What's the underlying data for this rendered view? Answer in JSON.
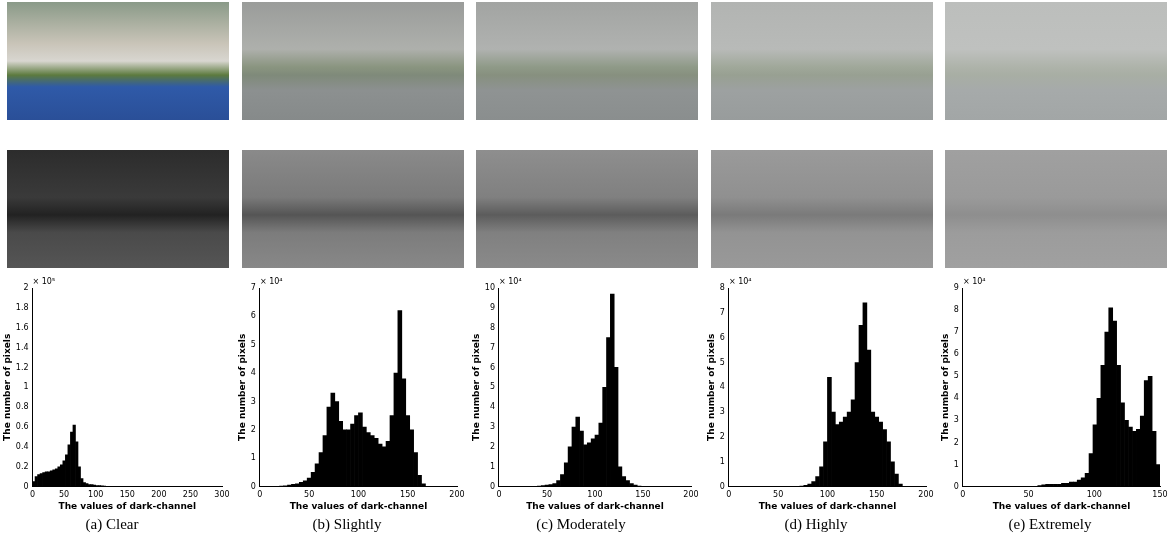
{
  "chart_data": [
    {
      "type": "histogram",
      "title": "(a) Clear",
      "x_label": "The values of dark-channel",
      "y_label": "The number of pixels",
      "annotations": [
        "× 10⁵"
      ],
      "color": "#000000",
      "grid": false,
      "bins": [
        0,
        4,
        8,
        12,
        16,
        20,
        24,
        28,
        32,
        36,
        40,
        44,
        48,
        52,
        56,
        60,
        64,
        68,
        72,
        76,
        80,
        84,
        88,
        92,
        96,
        100,
        104,
        108,
        112,
        116,
        120
      ],
      "values": [
        0.05,
        0.1,
        0.12,
        0.13,
        0.14,
        0.15,
        0.15,
        0.16,
        0.17,
        0.18,
        0.2,
        0.22,
        0.26,
        0.32,
        0.42,
        0.55,
        0.62,
        0.45,
        0.2,
        0.08,
        0.04,
        0.03,
        0.02,
        0.02,
        0.015,
        0.01,
        0.01,
        0.008,
        0.005,
        0.003
      ],
      "xlim": [
        0,
        300
      ],
      "xticks": [
        0,
        50,
        100,
        150,
        200,
        250,
        300
      ],
      "ylim": [
        0,
        2
      ],
      "yticks": [
        0,
        0.2,
        0.4,
        0.6,
        0.8,
        1,
        1.2,
        1.4,
        1.6,
        1.8,
        2
      ]
    },
    {
      "type": "histogram",
      "title": "(b) Slightly",
      "x_label": "The values of dark-channel",
      "y_label": "The number of pixels",
      "annotations": [
        "× 10⁴"
      ],
      "color": "#000000",
      "grid": false,
      "bins": [
        20,
        24,
        28,
        32,
        36,
        40,
        44,
        48,
        52,
        56,
        60,
        64,
        68,
        72,
        76,
        80,
        84,
        88,
        92,
        96,
        100,
        104,
        108,
        112,
        116,
        120,
        124,
        128,
        132,
        136,
        140,
        144,
        148,
        152,
        156,
        160,
        164,
        168
      ],
      "values": [
        0.02,
        0.03,
        0.05,
        0.08,
        0.1,
        0.15,
        0.2,
        0.3,
        0.5,
        0.8,
        1.2,
        1.8,
        2.8,
        3.3,
        3.0,
        2.3,
        2.0,
        2.0,
        2.2,
        2.5,
        2.6,
        2.1,
        1.9,
        1.8,
        1.7,
        1.5,
        1.4,
        1.6,
        2.5,
        4.0,
        6.2,
        3.8,
        2.5,
        2.0,
        1.2,
        0.4,
        0.1
      ],
      "xlim": [
        0,
        200
      ],
      "xticks": [
        0,
        50,
        100,
        150,
        200
      ],
      "ylim": [
        0,
        7
      ],
      "yticks": [
        0,
        1,
        2,
        3,
        4,
        5,
        6,
        7
      ]
    },
    {
      "type": "histogram",
      "title": "(c) Moderately",
      "x_label": "The values of dark-channel",
      "y_label": "The number of pixels",
      "annotations": [
        "× 10⁴"
      ],
      "color": "#000000",
      "grid": false,
      "bins": [
        40,
        44,
        48,
        52,
        56,
        60,
        64,
        68,
        72,
        76,
        80,
        84,
        88,
        92,
        96,
        100,
        104,
        108,
        112,
        116,
        120,
        124,
        128,
        132,
        136,
        140,
        144,
        148
      ],
      "values": [
        0.02,
        0.05,
        0.08,
        0.1,
        0.15,
        0.3,
        0.6,
        1.2,
        2.0,
        3.0,
        3.5,
        2.8,
        2.1,
        2.2,
        2.4,
        2.6,
        3.2,
        5.0,
        7.5,
        9.7,
        6.0,
        1.0,
        0.5,
        0.3,
        0.15,
        0.08,
        0.03
      ],
      "xlim": [
        0,
        200
      ],
      "xticks": [
        0,
        50,
        100,
        150,
        200
      ],
      "ylim": [
        0,
        10
      ],
      "yticks": [
        0,
        1,
        2,
        3,
        4,
        5,
        6,
        7,
        8,
        9,
        10
      ]
    },
    {
      "type": "histogram",
      "title": "(d) Highly",
      "x_label": "The values of dark-channel",
      "y_label": "The number of pixels",
      "annotations": [
        "× 10⁴"
      ],
      "color": "#000000",
      "grid": false,
      "bins": [
        72,
        76,
        80,
        84,
        88,
        92,
        96,
        100,
        104,
        108,
        112,
        116,
        120,
        124,
        128,
        132,
        136,
        140,
        144,
        148,
        152,
        156,
        160,
        164,
        168,
        172,
        176
      ],
      "values": [
        0.02,
        0.05,
        0.1,
        0.2,
        0.4,
        0.8,
        1.8,
        4.4,
        3.0,
        2.5,
        2.6,
        2.8,
        3.0,
        3.5,
        5.0,
        6.5,
        7.4,
        5.5,
        3.0,
        2.8,
        2.6,
        2.3,
        1.8,
        1.0,
        0.5,
        0.1
      ],
      "xlim": [
        0,
        200
      ],
      "xticks": [
        0,
        50,
        100,
        150,
        200
      ],
      "ylim": [
        0,
        8
      ],
      "yticks": [
        0,
        1,
        2,
        3,
        4,
        5,
        6,
        7,
        8
      ]
    },
    {
      "type": "histogram",
      "title": "(e) Extremely",
      "x_label": "The values of dark-channel",
      "y_label": "The number of pixels",
      "annotations": [
        "× 10⁴"
      ],
      "color": "#000000",
      "grid": false,
      "bins": [
        57,
        60,
        63,
        66,
        69,
        72,
        75,
        78,
        81,
        84,
        87,
        90,
        93,
        96,
        99,
        102,
        105,
        108,
        111,
        114,
        117,
        120,
        123,
        126,
        129,
        132,
        135,
        138,
        141,
        144,
        147,
        150
      ],
      "values": [
        0.05,
        0.08,
        0.1,
        0.1,
        0.1,
        0.1,
        0.15,
        0.15,
        0.2,
        0.2,
        0.3,
        0.4,
        0.6,
        1.5,
        2.8,
        4.0,
        5.5,
        7.0,
        8.1,
        7.5,
        5.5,
        3.8,
        3.0,
        2.7,
        2.5,
        2.6,
        3.2,
        4.8,
        5.0,
        2.5,
        1.0
      ],
      "xlim": [
        0,
        150
      ],
      "xticks": [
        0,
        50,
        100,
        150
      ],
      "ylim": [
        0,
        9
      ],
      "yticks": [
        0,
        1,
        2,
        3,
        4,
        5,
        6,
        7,
        8,
        9
      ]
    }
  ]
}
